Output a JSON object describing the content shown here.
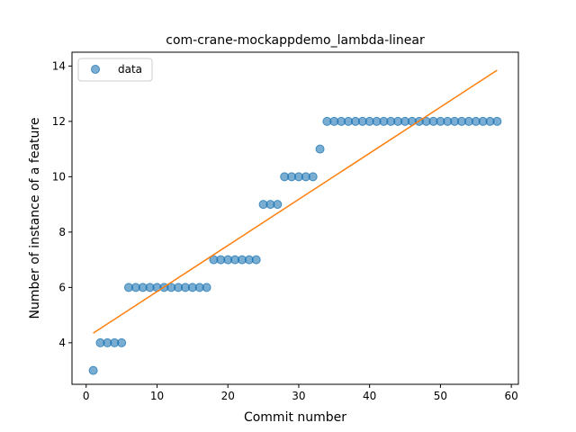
{
  "chart_data": {
    "type": "scatter",
    "title": "com-crane-mockappdemo_lambda-linear",
    "xlabel": "Commit number",
    "ylabel": "Number of instance of a feature",
    "xlim": [
      -2,
      61
    ],
    "ylim": [
      2.5,
      14.5
    ],
    "xticks": [
      0,
      10,
      20,
      30,
      40,
      50,
      60
    ],
    "yticks": [
      4,
      6,
      8,
      10,
      12,
      14
    ],
    "grid": false,
    "legend": {
      "position": "top-left",
      "entries": [
        "data"
      ]
    },
    "series": [
      {
        "name": "data",
        "kind": "scatter",
        "color": "#1f77b4",
        "x": [
          1,
          2,
          3,
          4,
          5,
          6,
          7,
          8,
          9,
          10,
          11,
          12,
          13,
          14,
          15,
          16,
          17,
          18,
          19,
          20,
          21,
          22,
          23,
          24,
          25,
          26,
          27,
          28,
          29,
          30,
          31,
          32,
          33,
          34,
          35,
          36,
          37,
          38,
          39,
          40,
          41,
          42,
          43,
          44,
          45,
          46,
          47,
          48,
          49,
          50,
          51,
          52,
          53,
          54,
          55,
          56,
          57,
          58
        ],
        "y": [
          3,
          4,
          4,
          4,
          4,
          6,
          6,
          6,
          6,
          6,
          6,
          6,
          6,
          6,
          6,
          6,
          6,
          7,
          7,
          7,
          7,
          7,
          7,
          7,
          9,
          9,
          9,
          10,
          10,
          10,
          10,
          10,
          11,
          12,
          12,
          12,
          12,
          12,
          12,
          12,
          12,
          12,
          12,
          12,
          12,
          12,
          12,
          12,
          12,
          12,
          12,
          12,
          12,
          12,
          12,
          12,
          12,
          12
        ]
      },
      {
        "kind": "line",
        "color": "#ff7f0e",
        "x": [
          1,
          58
        ],
        "y": [
          4.35,
          13.85
        ]
      }
    ]
  }
}
